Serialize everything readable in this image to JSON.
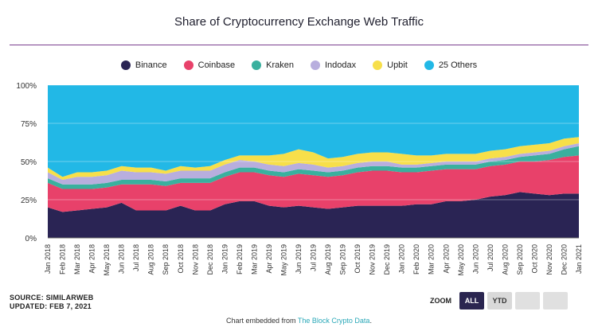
{
  "chart_data": {
    "type": "area",
    "stacked": true,
    "title": "Share of Cryptocurrency Exchange Web Traffic",
    "ylim": [
      0,
      100
    ],
    "y_ticks": [
      "0%",
      "25%",
      "50%",
      "75%",
      "100%"
    ],
    "y_tick_values": [
      0,
      25,
      50,
      75,
      100
    ],
    "grid": true,
    "legend_position": "top",
    "x": [
      "Jan 2018",
      "Feb 2018",
      "Mar 2018",
      "Apr 2018",
      "May 2018",
      "Jun 2018",
      "Jul 2018",
      "Aug 2018",
      "Sep 2018",
      "Oct 2018",
      "Nov 2018",
      "Dec 2018",
      "Jan 2019",
      "Feb 2019",
      "Mar 2019",
      "Apr 2019",
      "May 2019",
      "Jun 2019",
      "Jul 2019",
      "Aug 2019",
      "Sep 2019",
      "Oct 2019",
      "Nov 2019",
      "Dec 2019",
      "Jan 2020",
      "Feb 2020",
      "Mar 2020",
      "Apr 2020",
      "May 2020",
      "Jun 2020",
      "Jul 2020",
      "Aug 2020",
      "Sep 2020",
      "Oct 2020",
      "Nov 2020",
      "Dec 2020",
      "Jan 2021"
    ],
    "x_tick_labels": [
      "Jan 2018",
      "Feb 2018",
      "Mar 2018",
      "Apr 2018",
      "May 2018",
      "Jun 2018",
      "Jul 2018",
      "Aug 2018",
      "Sep 2018",
      "Oct 2018",
      "Nov 2018",
      "Dec 2018",
      "Jan 2019",
      "Feb 2019",
      "Mar 2019",
      "Apr 2019",
      "May 2019",
      "Jun 2019",
      "Jul 2019",
      "Aug 2019",
      "Sep 2019",
      "Oct 2019",
      "Nov 2019",
      "Dec 2019",
      "Jan 2020",
      "Feb 2020",
      "Mar 2020",
      "Apr 2020",
      "May 2020",
      "Jun 2020",
      "Jul 2020",
      "Aug 2020",
      "Sep 2020",
      "Oct 2020",
      "Nov 2020",
      "Dec 2020",
      "Jan 2021"
    ],
    "series": [
      {
        "name": "Binance",
        "color": "#2a2454",
        "values": [
          20,
          17,
          18,
          19,
          20,
          23,
          18,
          18,
          18,
          21,
          18,
          18,
          22,
          24,
          24,
          21,
          20,
          21,
          20,
          19,
          20,
          21,
          21,
          21,
          21,
          22,
          22,
          24,
          24,
          25,
          27,
          28,
          30,
          29,
          28,
          29,
          29
        ]
      },
      {
        "name": "Coinbase",
        "color": "#e8416a",
        "values": [
          16,
          15,
          14,
          13,
          13,
          12,
          17,
          17,
          16,
          15,
          18,
          18,
          18,
          19,
          19,
          20,
          20,
          21,
          21,
          21,
          21,
          22,
          23,
          23,
          22,
          21,
          22,
          21,
          21,
          20,
          20,
          20,
          20,
          21,
          23,
          24,
          25
        ]
      },
      {
        "name": "Kraken",
        "color": "#3ab09e",
        "values": [
          3,
          3,
          3,
          3,
          3,
          3,
          3,
          3,
          3,
          3,
          3,
          3,
          3,
          3,
          3,
          3,
          3,
          3,
          3,
          3,
          3,
          3,
          3,
          3,
          3,
          3,
          3,
          3,
          3,
          3,
          3,
          3,
          3,
          4,
          4,
          5,
          6
        ]
      },
      {
        "name": "Indodax",
        "color": "#b8aede",
        "values": [
          4,
          3,
          5,
          5,
          5,
          6,
          5,
          5,
          5,
          5,
          5,
          5,
          5,
          5,
          4,
          4,
          4,
          4,
          4,
          3,
          3,
          3,
          3,
          3,
          2,
          2,
          2,
          2,
          2,
          2,
          2,
          2,
          2,
          2,
          2,
          2,
          2
        ]
      },
      {
        "name": "Upbit",
        "color": "#f7df4a",
        "values": [
          3,
          2,
          3,
          3,
          3,
          3,
          3,
          3,
          2,
          3,
          2,
          3,
          3,
          3,
          4,
          6,
          8,
          9,
          8,
          6,
          6,
          6,
          6,
          6,
          7,
          6,
          5,
          5,
          5,
          5,
          5,
          5,
          5,
          5,
          5,
          5,
          4
        ]
      },
      {
        "name": "25 Others",
        "color": "#22b8e6",
        "values": [
          54,
          60,
          57,
          57,
          56,
          53,
          54,
          54,
          56,
          53,
          54,
          53,
          49,
          46,
          46,
          46,
          45,
          42,
          44,
          48,
          47,
          45,
          44,
          44,
          45,
          46,
          46,
          45,
          45,
          45,
          43,
          42,
          40,
          39,
          38,
          35,
          34
        ]
      }
    ]
  },
  "footer": {
    "source_line": "SOURCE: SIMILARWEB",
    "updated_line": "UPDATED: FEB 7, 2021",
    "credit_prefix": "Chart embedded from ",
    "credit_link": "The Block Crypto Data",
    "credit_suffix": "."
  },
  "zoom": {
    "label": "ZOOM",
    "buttons": [
      "ALL",
      "YTD",
      "",
      ""
    ]
  }
}
